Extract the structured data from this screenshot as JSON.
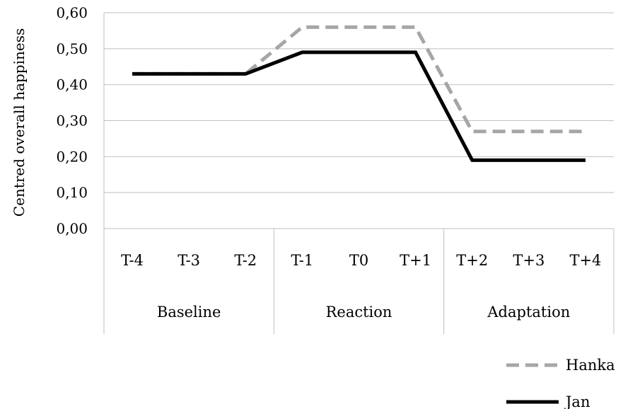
{
  "chart_data": {
    "type": "line",
    "title": "",
    "ylabel": "Centred overall happiness",
    "xlabel": "",
    "ylim": [
      0,
      0.6
    ],
    "yticks": [
      "0,00",
      "0,10",
      "0,20",
      "0,30",
      "0,40",
      "0,50",
      "0,60"
    ],
    "yticks_values": [
      0,
      0.1,
      0.2,
      0.3,
      0.4,
      0.5,
      0.6
    ],
    "grid": true,
    "categories": [
      "T-4",
      "T-3",
      "T-2",
      "T-1",
      "T0",
      "T+1",
      "T+2",
      "T+3",
      "T+4"
    ],
    "groups": [
      {
        "label": "Baseline",
        "categories": [
          "T-4",
          "T-3",
          "T-2"
        ]
      },
      {
        "label": "Reaction",
        "categories": [
          "T-1",
          "T0",
          "T+1"
        ]
      },
      {
        "label": "Adaptation",
        "categories": [
          "T+2",
          "T+3",
          "T+4"
        ]
      }
    ],
    "series": [
      {
        "name": "Hanka",
        "color": "#a6a6a6",
        "style": "dashed",
        "values": [
          0.43,
          0.43,
          0.43,
          0.56,
          0.56,
          0.56,
          0.27,
          0.27,
          0.27
        ]
      },
      {
        "name": "Jan",
        "color": "#000000",
        "style": "solid",
        "values": [
          0.43,
          0.43,
          0.43,
          0.49,
          0.49,
          0.49,
          0.19,
          0.19,
          0.19
        ]
      }
    ],
    "legend_position": "bottom-right"
  }
}
